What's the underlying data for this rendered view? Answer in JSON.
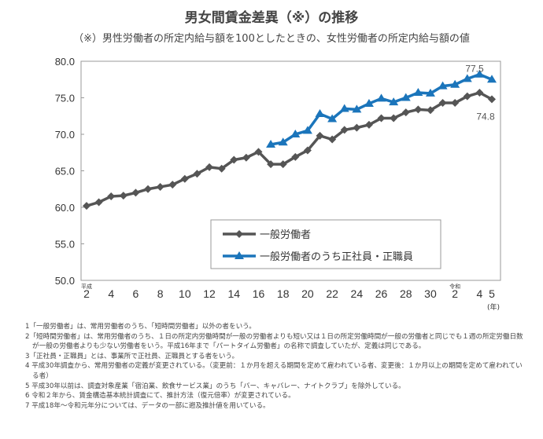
{
  "chart_data": {
    "type": "line",
    "title": "男女間賃金差異（※）の推移",
    "subtitle": "（※）男性労働者の所定内給与額を100としたときの、女性労働者の所定内給与額の値",
    "x": [
      "H2",
      "H3",
      "H4",
      "H5",
      "H6",
      "H7",
      "H8",
      "H9",
      "H10",
      "H11",
      "H12",
      "H13",
      "H14",
      "H15",
      "H16",
      "H17",
      "H18",
      "H19",
      "H20",
      "H21",
      "H22",
      "H23",
      "H24",
      "H25",
      "H26",
      "H27",
      "H28",
      "H29",
      "H30",
      "R1",
      "R2",
      "R3",
      "R4",
      "R5"
    ],
    "x_tick_labels": [
      "2",
      "4",
      "6",
      "8",
      "10",
      "12",
      "14",
      "16",
      "18",
      "20",
      "22",
      "24",
      "26",
      "28",
      "30",
      "2",
      "4",
      "5"
    ],
    "era_labels": [
      "平成",
      "令和"
    ],
    "x_unit": "(年)",
    "ylim": [
      50,
      80
    ],
    "y_tick_labels": [
      "50.0",
      "55.0",
      "60.0",
      "65.0",
      "70.0",
      "75.0",
      "80.0"
    ],
    "grid": false,
    "legend": "center-right",
    "series": [
      {
        "name": "一般労働者",
        "color": "#555555",
        "marker": "diamond",
        "values": [
          60.2,
          60.7,
          61.5,
          61.6,
          62.0,
          62.5,
          62.8,
          63.1,
          63.9,
          64.6,
          65.5,
          65.3,
          66.5,
          66.8,
          67.6,
          65.9,
          65.9,
          66.9,
          67.8,
          69.8,
          69.3,
          70.6,
          70.9,
          71.3,
          72.2,
          72.2,
          73.0,
          73.4,
          73.3,
          74.3,
          74.3,
          75.2,
          75.7,
          74.8
        ]
      },
      {
        "name": "一般労働者のうち正社員・正職員",
        "color": "#1b75bb",
        "marker": "triangle",
        "values": [
          null,
          null,
          null,
          null,
          null,
          null,
          null,
          null,
          null,
          null,
          null,
          null,
          null,
          null,
          null,
          68.6,
          68.9,
          70.0,
          70.5,
          72.8,
          72.1,
          73.5,
          73.4,
          74.2,
          74.9,
          74.4,
          75.0,
          75.7,
          75.6,
          76.6,
          76.8,
          77.6,
          78.2,
          77.5
        ]
      }
    ],
    "annotations": [
      "77.5",
      "74.8"
    ]
  },
  "notes": [
    "1「一般労働者」は、常用労働者のうち、「短時間労働者」以外の者をいう。",
    "2「短時間労働者」は、常用労働者のうち、１日の所定内労働時間が一般の労働者よりも短い又は１日の所定労働時間が一般の労働者と同じでも１週の所定労働日数が一般の労働者よりも少ない労働者をいう。平成16年まで「パートタイム労働者」の名称で調査していたが、定義は同じである。",
    "3「正社員・正職員」とは、事業所で正社員、正職員とする者をいう。",
    "4 平成30年調査から、常用労働者の定義が変更されている。（変更前：１か月を超える期間を定めて雇われている者、変更後：１か月以上の期間を定めて雇われている者）",
    "5 平成30年以前は、調査対象産業「宿泊業、飲食サービス業」のうち「バー、キャバレー、ナイトクラブ」を除外している。",
    "6 令和２年から、賃金構造基本統計調査にて、推計方法（復元倍率）が変更されている。",
    "7 平成18年～令和元年分については、データの一部に遡及推計値を用いている。"
  ]
}
